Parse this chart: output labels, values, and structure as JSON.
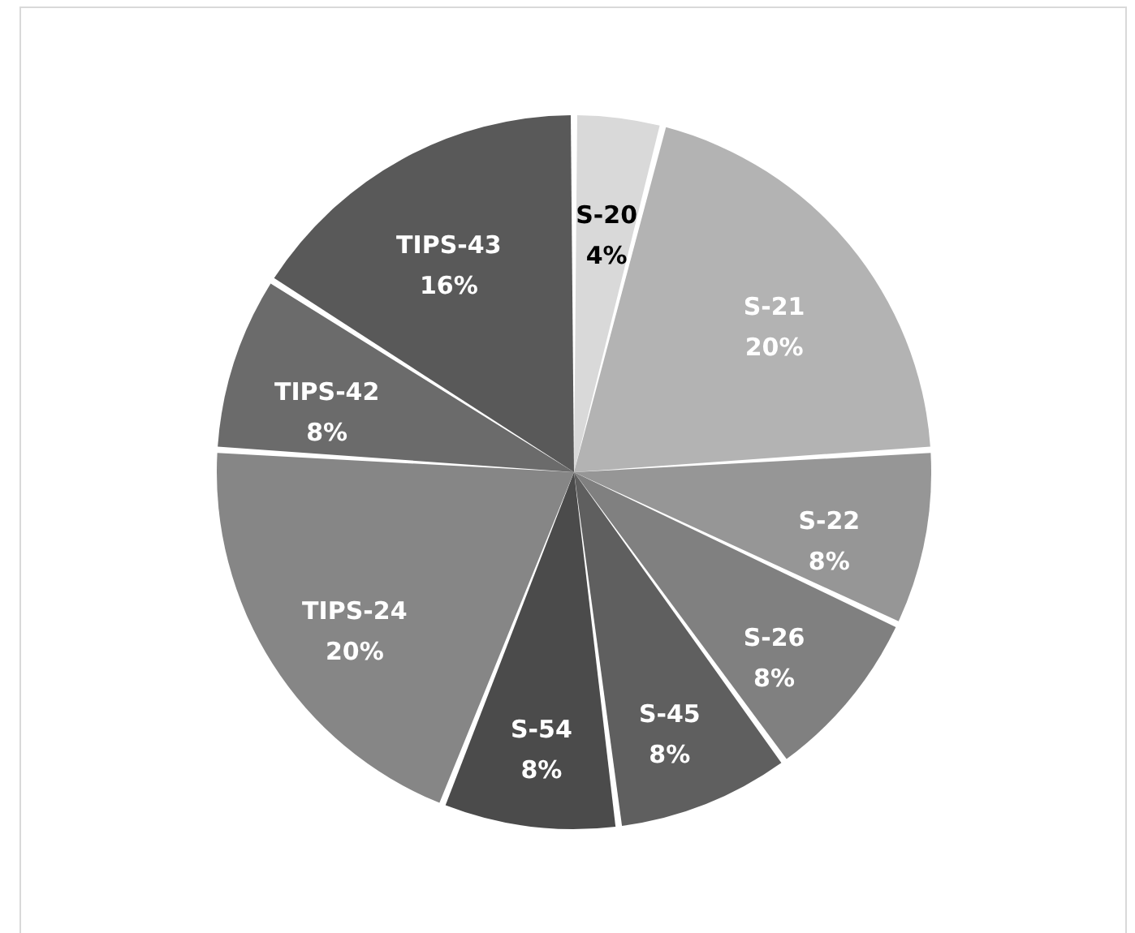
{
  "chart_data": {
    "type": "pie",
    "categories": [
      "S-20",
      "S-21",
      "S-22",
      "S-26",
      "S-45",
      "S-54",
      "TIPS-24",
      "TIPS-42",
      "TIPS-43"
    ],
    "values": [
      4,
      20,
      8,
      8,
      8,
      8,
      20,
      8,
      16
    ],
    "value_labels": [
      "4%",
      "20%",
      "8%",
      "8%",
      "8%",
      "8%",
      "20%",
      "8%",
      "16%"
    ],
    "colors": [
      "#d9d9d9",
      "#b3b3b3",
      "#969696",
      "#808080",
      "#5f5f5f",
      "#4b4b4b",
      "#868686",
      "#6b6b6b",
      "#595959"
    ]
  }
}
